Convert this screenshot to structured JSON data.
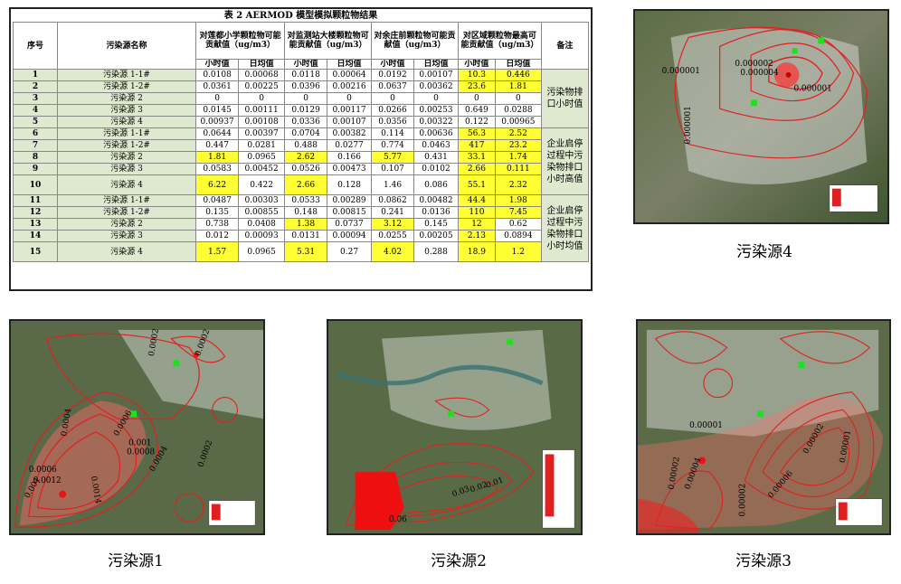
{
  "table": {
    "caption": "表 2 AERMOD 模型模拟颗粒物结果",
    "headers": {
      "idx": "序号",
      "name": "污染源名称",
      "g1": "对莲都小学颗粒物可能贡献值（ug/m3）",
      "g2": "对监测站大楼颗粒物可能贡献值（ug/m3）",
      "g3": "对余庄前颗粒物可能贡献值（ug/m3）",
      "g4": "对区域颗粒物最高可能贡献值（ug/m3）",
      "note": "备注",
      "hour": "小时值",
      "day": "日均值"
    },
    "rows": [
      {
        "idx": "1",
        "name": "污染源 1-1#",
        "v": [
          "0.0108",
          "0.00068",
          "0.0118",
          "0.00064",
          "0.0192",
          "0.00107",
          "10.3",
          "0.446"
        ],
        "hl": [
          6,
          7
        ]
      },
      {
        "idx": "2",
        "name": "污染源 1-2#",
        "v": [
          "0.0361",
          "0.00225",
          "0.0396",
          "0.00216",
          "0.0637",
          "0.00362",
          "23.6",
          "1.81"
        ],
        "hl": [
          6,
          7
        ]
      },
      {
        "idx": "3",
        "name": "污染源 2",
        "v": [
          "0",
          "0",
          "0",
          "0",
          "0",
          "0",
          "0",
          "0"
        ],
        "hl": []
      },
      {
        "idx": "4",
        "name": "污染源 3",
        "v": [
          "0.0145",
          "0.00111",
          "0.0129",
          "0.00117",
          "0.0266",
          "0.00253",
          "0.649",
          "0.0288"
        ],
        "hl": []
      },
      {
        "idx": "5",
        "name": "污染源 4",
        "v": [
          "0.00937",
          "0.00108",
          "0.0336",
          "0.00107",
          "0.0356",
          "0.00322",
          "0.122",
          "0.00965"
        ],
        "hl": []
      },
      {
        "idx": "6",
        "name": "污染源 1-1#",
        "v": [
          "0.0644",
          "0.00397",
          "0.0704",
          "0.00382",
          "0.114",
          "0.00636",
          "56.3",
          "2.52"
        ],
        "hl": [
          6,
          7
        ]
      },
      {
        "idx": "7",
        "name": "污染源 1-2#",
        "v": [
          "0.447",
          "0.0281",
          "0.488",
          "0.0277",
          "0.774",
          "0.0463",
          "417",
          "23.2"
        ],
        "hl": [
          6,
          7
        ]
      },
      {
        "idx": "8",
        "name": "污染源 2",
        "v": [
          "1.81",
          "0.0965",
          "2.62",
          "0.166",
          "5.77",
          "0.431",
          "33.1",
          "1.74"
        ],
        "hl": [
          0,
          2,
          4,
          6,
          7
        ]
      },
      {
        "idx": "9",
        "name": "污染源 3",
        "v": [
          "0.0583",
          "0.00452",
          "0.0526",
          "0.00473",
          "0.107",
          "0.0102",
          "2.66",
          "0.111"
        ],
        "hl": [
          6,
          7
        ]
      },
      {
        "idx": "10",
        "name": "污染源 4",
        "v": [
          "6.22",
          "0.422",
          "2.66",
          "0.128",
          "1.46",
          "0.086",
          "55.1",
          "2.32"
        ],
        "hl": [
          0,
          2,
          6,
          7
        ]
      },
      {
        "idx": "11",
        "name": "污染源 1-1#",
        "v": [
          "0.0487",
          "0.00303",
          "0.0533",
          "0.00289",
          "0.0862",
          "0.00482",
          "44.4",
          "1.98"
        ],
        "hl": [
          6,
          7
        ]
      },
      {
        "idx": "12",
        "name": "污染源 1-2#",
        "v": [
          "0.135",
          "0.00855",
          "0.148",
          "0.00815",
          "0.241",
          "0.0136",
          "110",
          "7.45"
        ],
        "hl": [
          6,
          7
        ]
      },
      {
        "idx": "13",
        "name": "污染源 2",
        "v": [
          "0.738",
          "0.0408",
          "1.38",
          "0.0737",
          "3.12",
          "0.145",
          "12",
          "0.62"
        ],
        "hl": [
          2,
          4,
          6
        ]
      },
      {
        "idx": "14",
        "name": "污染源 3",
        "v": [
          "0.012",
          "0.00093",
          "0.0131",
          "0.00094",
          "0.0255",
          "0.00205",
          "2.13",
          "0.0894"
        ],
        "hl": [
          6
        ]
      },
      {
        "idx": "15",
        "name": "污染源 4",
        "v": [
          "1.57",
          "0.0965",
          "5.31",
          "0.27",
          "4.02",
          "0.288",
          "18.9",
          "1.2"
        ],
        "hl": [
          0,
          2,
          4,
          6,
          7
        ]
      }
    ],
    "notes": [
      "污染物排口小时值",
      "企业启停过程中污染物排口小时高值",
      "企业启停过程中污染物排口小时均值"
    ]
  },
  "maps": {
    "m4": {
      "caption": "污染源4",
      "labels": [
        "0.000001",
        "0.000002",
        "0.000004",
        "0.000001",
        "0.000001"
      ]
    },
    "m1": {
      "caption": "污染源1",
      "labels": [
        "0.0002",
        "0.0002",
        "0.0004",
        "0.0006",
        "0.001",
        "0.0008",
        "0.0004",
        "0.0002",
        "0.0006",
        "0.0012",
        "0.0014",
        "0.001"
      ]
    },
    "m2": {
      "caption": "污染源2",
      "labels": [
        "0.03",
        "0.02",
        "0.01",
        "0.06"
      ]
    },
    "m3": {
      "caption": "污染源3",
      "labels": [
        "0.00001",
        "0.00002",
        "0.00004",
        "0.00002",
        "0.00006",
        "0.00002",
        "0.00001"
      ]
    }
  },
  "colors": {
    "contour": "#e02020",
    "highlight": "#ffff33",
    "rowbg": "#dfe9cf",
    "marker": "#22dd22"
  }
}
